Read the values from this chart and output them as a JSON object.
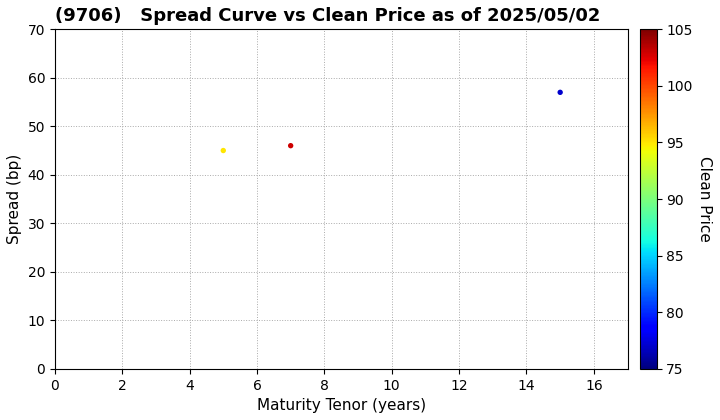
{
  "title": "(9706)   Spread Curve vs Clean Price as of 2025/05/02",
  "xlabel": "Maturity Tenor (years)",
  "ylabel": "Spread (bp)",
  "colorbar_label": "Clean Price",
  "points": [
    {
      "tenor": 5.0,
      "spread": 45,
      "clean_price": 95.0
    },
    {
      "tenor": 7.0,
      "spread": 46,
      "clean_price": 103.0
    },
    {
      "tenor": 15.0,
      "spread": 57,
      "clean_price": 77.0
    }
  ],
  "xlim": [
    0,
    17
  ],
  "ylim": [
    0,
    70
  ],
  "xticks": [
    0,
    2,
    4,
    6,
    8,
    10,
    12,
    14,
    16
  ],
  "yticks": [
    0,
    10,
    20,
    30,
    40,
    50,
    60,
    70
  ],
  "cmap": "jet",
  "clim": [
    75,
    105
  ],
  "cticks": [
    75,
    80,
    85,
    90,
    95,
    100,
    105
  ],
  "grid_color": "#aaaaaa",
  "grid_style": ":",
  "marker_size": 15,
  "bg_color": "white",
  "title_fontsize": 13,
  "axis_fontsize": 11,
  "tick_fontsize": 10
}
